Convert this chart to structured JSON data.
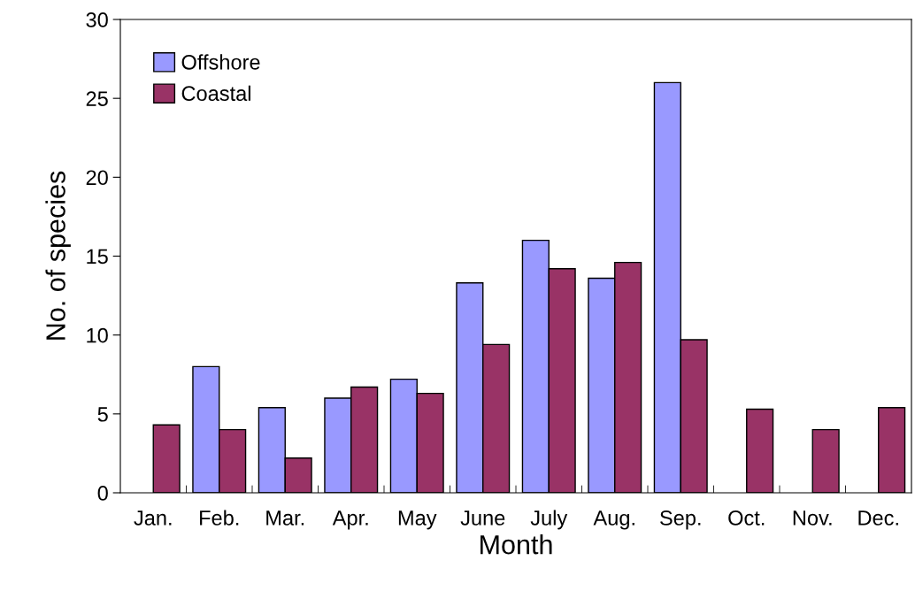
{
  "chart_data": {
    "type": "bar",
    "xlabel": "Month",
    "ylabel": "No. of species",
    "categories": [
      "Jan.",
      "Feb.",
      "Mar.",
      "Apr.",
      "May",
      "June",
      "July",
      "Aug.",
      "Sep.",
      "Oct.",
      "Nov.",
      "Dec."
    ],
    "series": [
      {
        "name": "Offshore",
        "color": "#9999ff",
        "values": [
          null,
          8.0,
          5.4,
          6.0,
          7.2,
          13.3,
          16.0,
          13.6,
          26.0,
          null,
          null,
          null
        ]
      },
      {
        "name": "Coastal",
        "color": "#993366",
        "values": [
          4.3,
          4.0,
          2.2,
          6.7,
          6.3,
          9.4,
          14.2,
          14.6,
          9.7,
          5.3,
          4.0,
          5.4
        ]
      }
    ],
    "ylim": [
      0,
      30
    ],
    "yticks": [
      0,
      5,
      10,
      15,
      20,
      25,
      30
    ],
    "grid": false,
    "legend": "top left"
  }
}
